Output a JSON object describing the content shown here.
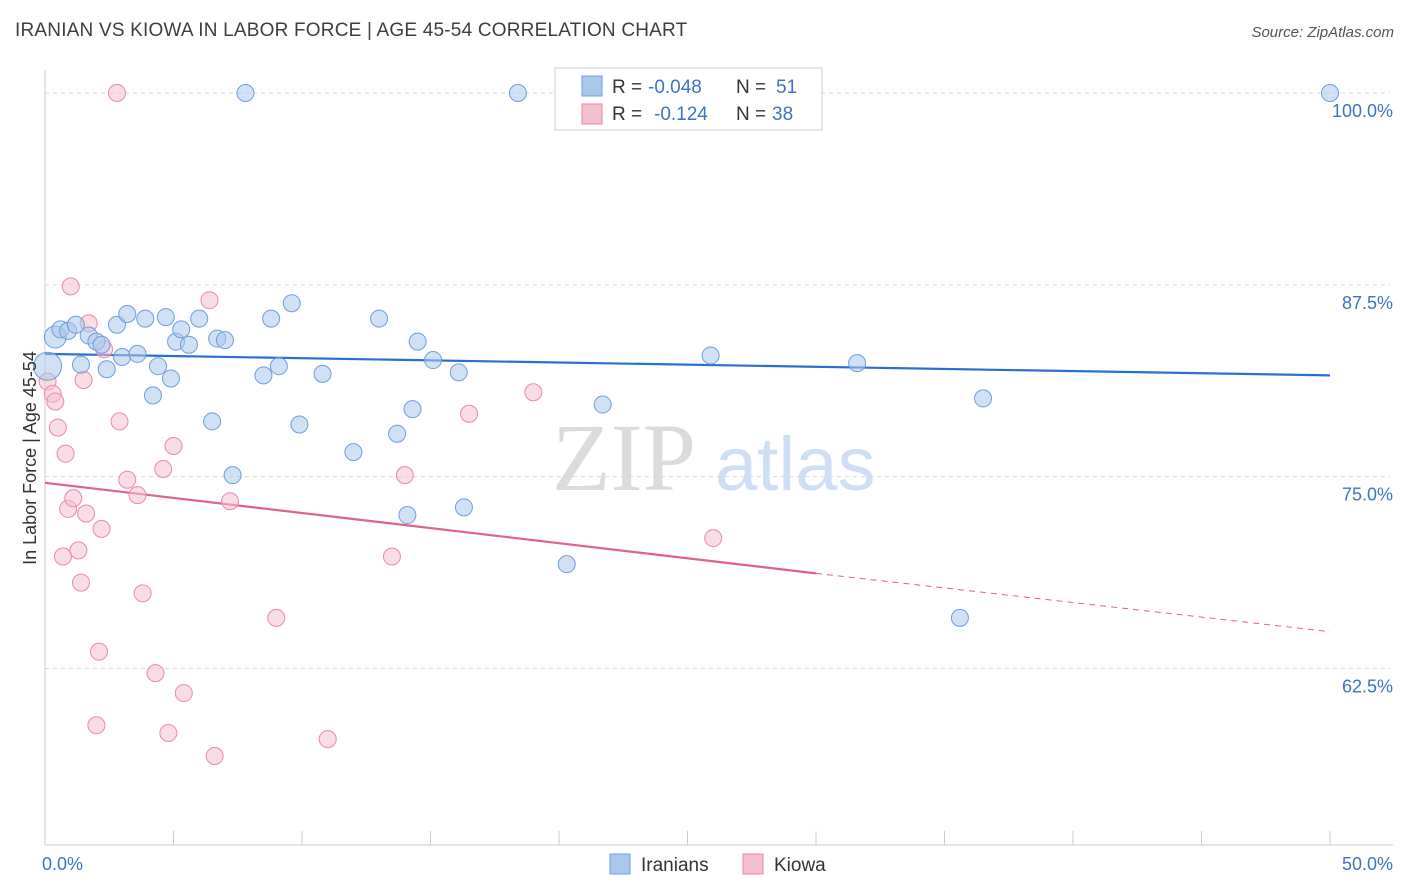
{
  "title": "IRANIAN VS KIOWA IN LABOR FORCE | AGE 45-54 CORRELATION CHART",
  "source": "Source: ZipAtlas.com",
  "watermark": {
    "zip": "ZIP",
    "atlas": "atlas"
  },
  "colors": {
    "blue_fill": "#a9c8ee",
    "blue_stroke": "#6d9fd8",
    "blue_line": "#2a6fcf",
    "pink_fill": "#f6bfd0",
    "pink_stroke": "#e88aaa",
    "pink_line": "#e0608e",
    "axis_text": "#3d73c7",
    "grid": "#d9d9d9"
  },
  "legend_box": {
    "rows": [
      {
        "r_label": "R =",
        "r_value": "-0.048",
        "n_label": "N =",
        "n_value": "51"
      },
      {
        "r_label": "R =",
        "r_value": "-0.124",
        "n_label": "N =",
        "n_value": "38"
      }
    ]
  },
  "bottom_legend": [
    "Iranians",
    "Kiowa"
  ],
  "chart_data": {
    "type": "scatter",
    "title": "IRANIAN VS KIOWA IN LABOR FORCE | AGE 45-54 CORRELATION CHART",
    "xlabel": "",
    "ylabel": "In Labor Force | Age 45-54",
    "xlim": [
      0,
      50
    ],
    "ylim": [
      51,
      101.5
    ],
    "x_tick_labels": [
      "0.0%",
      "50.0%"
    ],
    "y_ticks": [
      62.5,
      75.0,
      87.5,
      100.0
    ],
    "y_tick_labels": [
      "62.5%",
      "75.0%",
      "87.5%",
      "100.0%"
    ],
    "grid": true,
    "legend_position": "top-center",
    "series": [
      {
        "name": "Iranians",
        "r": -0.048,
        "n": 51,
        "trend": {
          "x": [
            0,
            50
          ],
          "y": [
            83.0,
            81.6
          ]
        },
        "points": [
          [
            0.1,
            82.2
          ],
          [
            0.4,
            84.1
          ],
          [
            0.6,
            84.6
          ],
          [
            0.9,
            84.5
          ],
          [
            1.2,
            84.9
          ],
          [
            1.4,
            82.3
          ],
          [
            1.7,
            84.2
          ],
          [
            2.0,
            83.8
          ],
          [
            2.2,
            83.6
          ],
          [
            2.4,
            82.0
          ],
          [
            2.8,
            84.9
          ],
          [
            3.0,
            82.8
          ],
          [
            3.2,
            85.6
          ],
          [
            3.6,
            83.0
          ],
          [
            3.9,
            85.3
          ],
          [
            4.2,
            80.3
          ],
          [
            4.4,
            82.2
          ],
          [
            4.7,
            85.4
          ],
          [
            4.9,
            81.4
          ],
          [
            5.1,
            83.8
          ],
          [
            5.3,
            84.6
          ],
          [
            5.6,
            83.6
          ],
          [
            6.0,
            85.3
          ],
          [
            6.5,
            78.6
          ],
          [
            6.7,
            84.0
          ],
          [
            7.0,
            83.9
          ],
          [
            7.3,
            75.1
          ],
          [
            7.8,
            100.0
          ],
          [
            8.5,
            81.6
          ],
          [
            8.8,
            85.3
          ],
          [
            9.1,
            82.2
          ],
          [
            9.6,
            86.3
          ],
          [
            9.9,
            78.4
          ],
          [
            10.8,
            81.7
          ],
          [
            12.0,
            76.6
          ],
          [
            13.0,
            85.3
          ],
          [
            13.7,
            77.8
          ],
          [
            14.1,
            72.5
          ],
          [
            14.3,
            79.4
          ],
          [
            14.5,
            83.8
          ],
          [
            15.1,
            82.6
          ],
          [
            16.1,
            81.8
          ],
          [
            16.3,
            73.0
          ],
          [
            18.4,
            100.0
          ],
          [
            20.3,
            69.3
          ],
          [
            21.7,
            79.7
          ],
          [
            25.9,
            82.9
          ],
          [
            31.6,
            82.4
          ],
          [
            36.5,
            80.1
          ],
          [
            35.6,
            65.8
          ],
          [
            50.0,
            100.0
          ]
        ]
      },
      {
        "name": "Kiowa",
        "r": -0.124,
        "n": 38,
        "trend": {
          "x": [
            0,
            30
          ],
          "y": [
            74.6,
            68.7
          ]
        },
        "trend_dashed": {
          "x": [
            30,
            50
          ],
          "y": [
            68.7,
            64.9
          ]
        },
        "points": [
          [
            0.1,
            81.2
          ],
          [
            0.3,
            80.4
          ],
          [
            0.4,
            79.9
          ],
          [
            0.5,
            78.2
          ],
          [
            0.7,
            69.8
          ],
          [
            0.8,
            76.5
          ],
          [
            0.9,
            72.9
          ],
          [
            1.0,
            87.4
          ],
          [
            1.1,
            73.6
          ],
          [
            1.3,
            70.2
          ],
          [
            1.4,
            68.1
          ],
          [
            1.5,
            81.3
          ],
          [
            1.6,
            72.6
          ],
          [
            1.7,
            85.0
          ],
          [
            2.0,
            58.8
          ],
          [
            2.1,
            63.6
          ],
          [
            2.2,
            71.6
          ],
          [
            2.3,
            83.3
          ],
          [
            2.8,
            100.0
          ],
          [
            2.9,
            78.6
          ],
          [
            3.2,
            74.8
          ],
          [
            3.6,
            73.8
          ],
          [
            3.8,
            67.4
          ],
          [
            4.3,
            62.2
          ],
          [
            4.6,
            75.5
          ],
          [
            4.8,
            58.3
          ],
          [
            5.0,
            77.0
          ],
          [
            5.4,
            60.9
          ],
          [
            6.4,
            86.5
          ],
          [
            6.6,
            56.8
          ],
          [
            7.2,
            73.4
          ],
          [
            9.0,
            65.8
          ],
          [
            11.0,
            57.9
          ],
          [
            13.5,
            69.8
          ],
          [
            14.0,
            75.1
          ],
          [
            16.5,
            79.1
          ],
          [
            19.0,
            80.5
          ],
          [
            26.0,
            71.0
          ]
        ]
      }
    ]
  }
}
